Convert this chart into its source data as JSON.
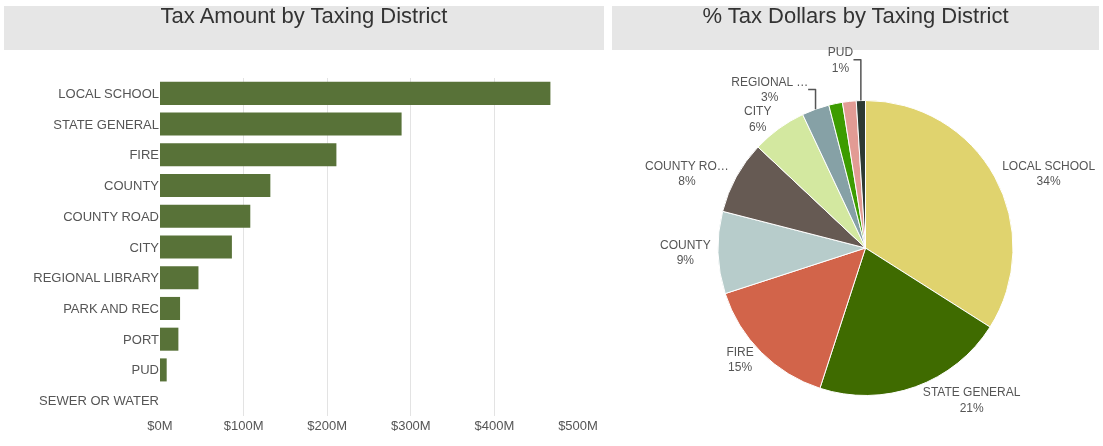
{
  "chart_data": [
    {
      "type": "bar",
      "title": "Tax Amount by Taxing District",
      "orientation": "horizontal",
      "categories": [
        "LOCAL SCHOOL",
        "STATE GENERAL",
        "FIRE",
        "COUNTY",
        "COUNTY ROAD",
        "CITY",
        "REGIONAL LIBRARY",
        "PARK AND REC",
        "PORT",
        "PUD",
        "SEWER OR WATER"
      ],
      "values": [
        467,
        289,
        211,
        132,
        108,
        86,
        46,
        24,
        22,
        8,
        0
      ],
      "color": "#587238",
      "xlim": [
        0,
        500
      ],
      "xticks": [
        {
          "value": 0,
          "label": "$0M"
        },
        {
          "value": 100,
          "label": "$100M"
        },
        {
          "value": 200,
          "label": "$200M"
        },
        {
          "value": 300,
          "label": "$300M"
        },
        {
          "value": 400,
          "label": "$400M"
        },
        {
          "value": 500,
          "label": "$500M"
        }
      ],
      "grid": "x"
    },
    {
      "type": "pie",
      "title": "% Tax Dollars by Taxing District",
      "categories": [
        "LOCAL SCHOOL",
        "STATE GENERAL",
        "FIRE",
        "COUNTY",
        "COUNTY RO…",
        "CITY",
        "REGIONAL …",
        null,
        null,
        "PUD"
      ],
      "values": [
        34,
        21,
        15,
        9,
        8,
        6,
        3,
        1.5,
        1.5,
        1
      ],
      "value_labels": [
        "34%",
        "21%",
        "15%",
        "9%",
        "8%",
        "6%",
        "3%",
        null,
        null,
        "1%"
      ],
      "colors": [
        "#e0d36e",
        "#3f6b00",
        "#d2644a",
        "#b7cccb",
        "#665a53",
        "#d3e8a0",
        "#86a1a6",
        "#3d9c00",
        "#e29b94",
        "#2d3a33"
      ]
    }
  ]
}
